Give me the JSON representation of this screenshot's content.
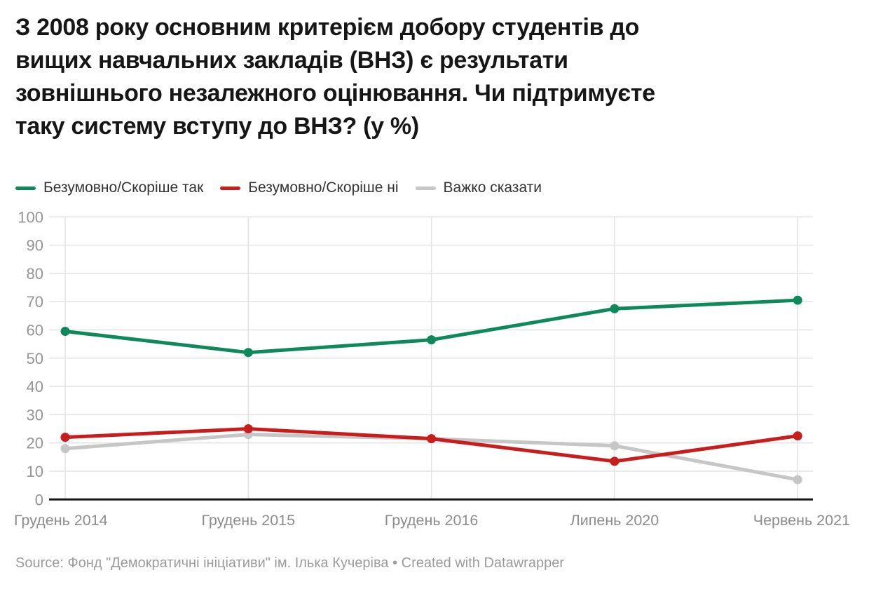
{
  "header": {
    "title_lines": [
      "З 2008 року основним критерієм добору студентів до",
      "вищих навчальних закладів (ВНЗ) є результати",
      "зовнішнього незалежного оцінювання. Чи підтримуєте",
      "таку систему вступу до ВНЗ? (у %)"
    ]
  },
  "chart_data": {
    "type": "line",
    "title": "З 2008 року основним критерієм добору студентів до вищих навчальних закладів (ВНЗ) є результати зовнішнього незалежного оцінювання. Чи підтримуєте таку систему вступу до ВНЗ? (у %)",
    "categories": [
      "Грудень 2014",
      "Грудень 2015",
      "Грудень 2016",
      "Липень 2020",
      "Червень 2021"
    ],
    "series": [
      {
        "name": "Безумовно/Скоріше так",
        "color": "#0e8a5a",
        "values": [
          59.5,
          52,
          56.5,
          67.5,
          70.5
        ]
      },
      {
        "name": "Безумовно/Скоріше ні",
        "color": "#c71e1d",
        "values": [
          22,
          25,
          21.5,
          13.5,
          22.5
        ]
      },
      {
        "name": "Важко сказати",
        "color": "#c6c6c6",
        "values": [
          18,
          23,
          21.5,
          19,
          7
        ]
      }
    ],
    "unit": "%",
    "ylim": [
      0,
      100
    ],
    "yticks": [
      0,
      10,
      20,
      30,
      40,
      50,
      60,
      70,
      80,
      90,
      100
    ],
    "grid": true,
    "legend_position": "top"
  },
  "footer": {
    "source_label": "Source:",
    "source_name": "Фонд \"Демократичні ініціативи\" ім. Ілька Кучеріва",
    "separator": "•",
    "credit": "Created with Datawrapper"
  },
  "style": {
    "title_color": "#161616",
    "legend_text_color": "#333333",
    "axis_text_color": "#949494",
    "grid_color": "#e3e3e3",
    "baseline_color": "#161616",
    "source_text_color": "#9b9b9b"
  }
}
